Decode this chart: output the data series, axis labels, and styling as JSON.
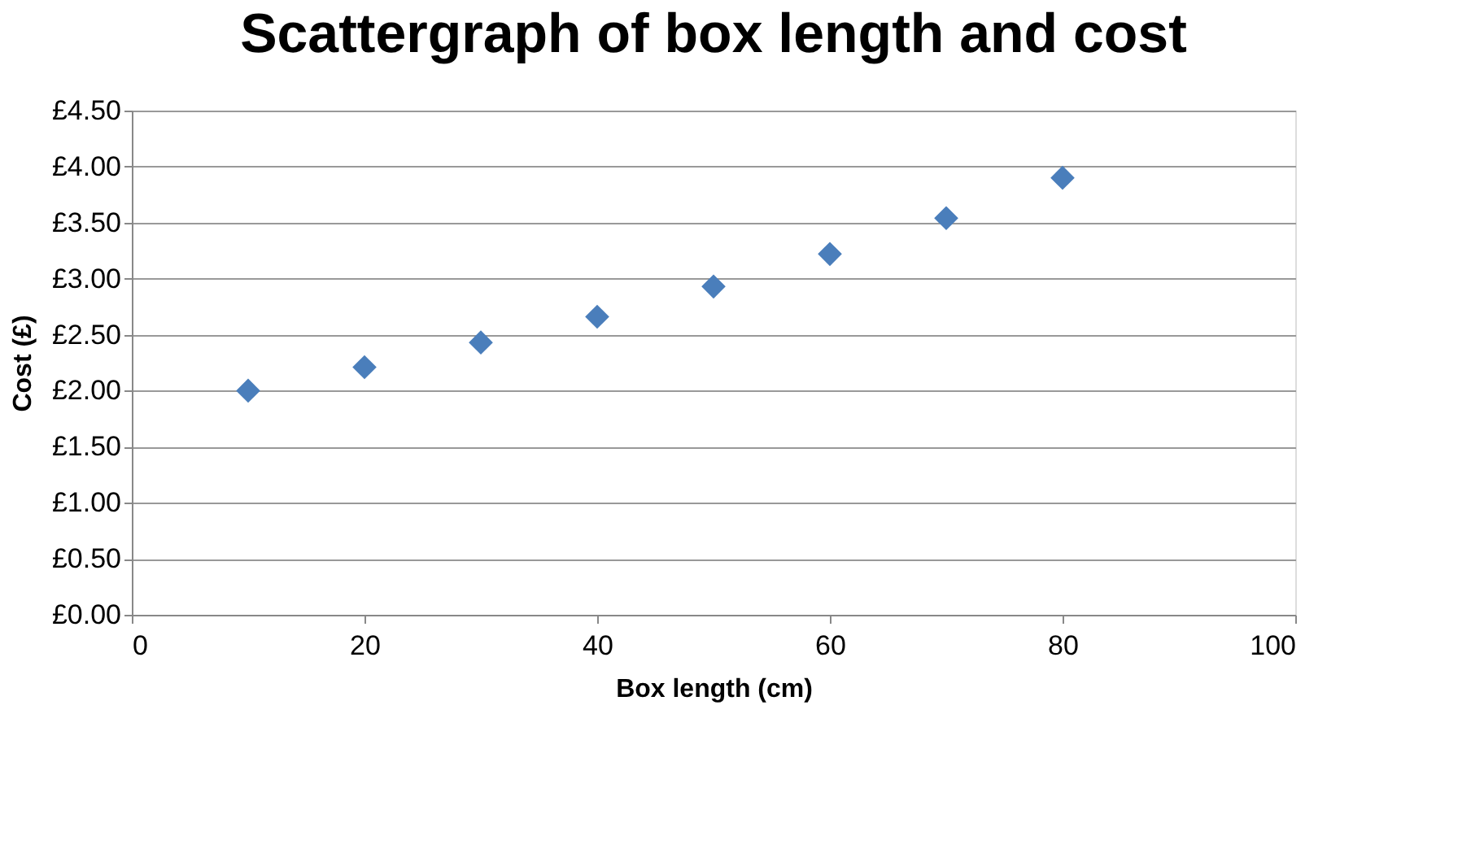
{
  "chart_data": {
    "type": "scatter",
    "title": "Scattergraph of box length and cost",
    "xlabel": "Box length (cm)",
    "ylabel": "Cost (£)",
    "x": [
      10,
      20,
      30,
      40,
      50,
      60,
      70,
      80
    ],
    "series": [
      {
        "color": "#4a7ebb",
        "values": [
          2.0,
          2.21,
          2.43,
          2.66,
          2.93,
          3.22,
          3.54,
          3.9
        ]
      }
    ],
    "xlim": [
      0,
      100
    ],
    "xticks": [
      0,
      20,
      40,
      60,
      80,
      100
    ],
    "ylim": [
      0,
      4.5
    ],
    "yticks": [
      {
        "value": 0,
        "label": "£0.00"
      },
      {
        "value": 0.5,
        "label": "£0.50"
      },
      {
        "value": 1,
        "label": "£1.00"
      },
      {
        "value": 1.5,
        "label": "£1.50"
      },
      {
        "value": 2,
        "label": "£2.00"
      },
      {
        "value": 2.5,
        "label": "£2.50"
      },
      {
        "value": 3,
        "label": "£3.00"
      },
      {
        "value": 3.5,
        "label": "£3.50"
      },
      {
        "value": 4,
        "label": "£4.00"
      },
      {
        "value": 4.5,
        "label": "£4.50"
      }
    ],
    "grid": "y",
    "marker": "diamond",
    "legend": false
  }
}
